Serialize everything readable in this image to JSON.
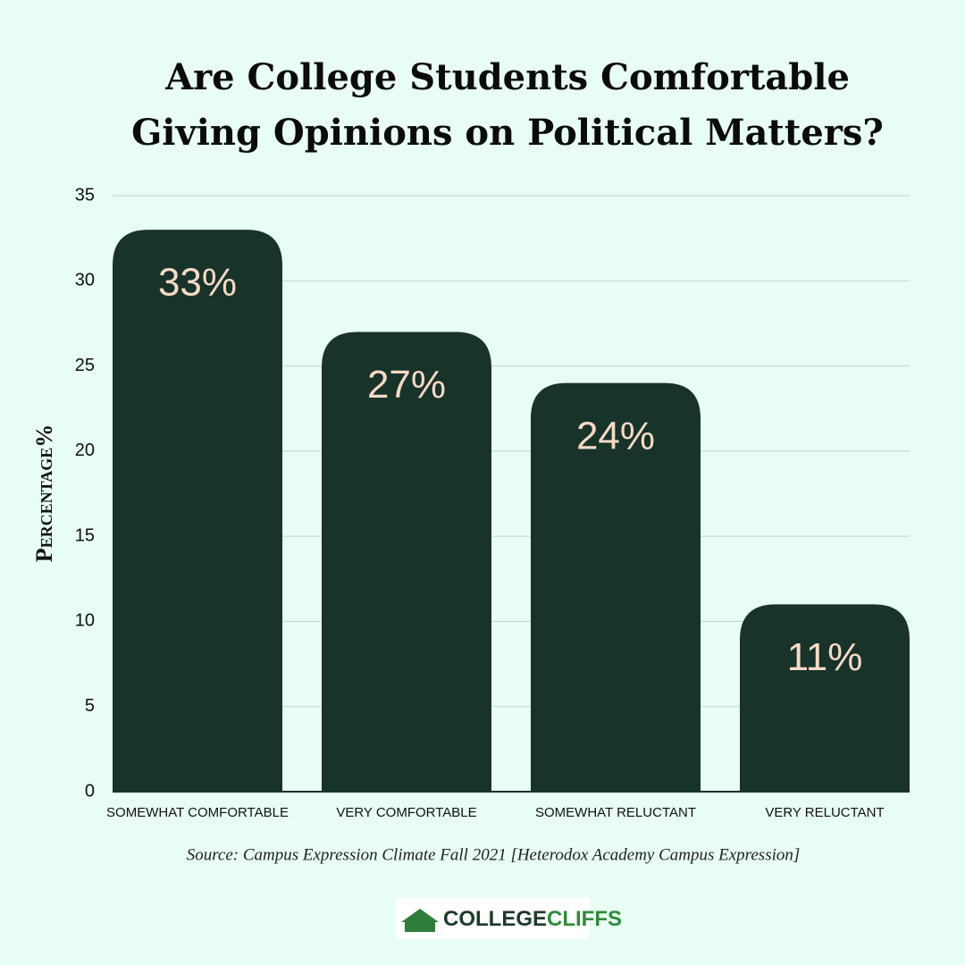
{
  "chart_data": {
    "type": "bar",
    "title": [
      "Are College Students Comfortable",
      "Giving Opinions on Political Matters?"
    ],
    "categories": [
      "SOMEWHAT COMFORTABLE",
      "VERY COMFORTABLE",
      "SOMEWHAT RELUCTANT",
      "VERY RELUCTANT"
    ],
    "values": [
      33,
      27,
      24,
      11
    ],
    "value_labels": [
      "33%",
      "27%",
      "24%",
      "11%"
    ],
    "color": "#17332a",
    "label_color": "#f6d9c5",
    "ylabel": "Percentage%",
    "ylim": [
      0,
      35
    ],
    "yticks": [
      0,
      5,
      10,
      15,
      20,
      25,
      30,
      35
    ],
    "grid": true,
    "source": "Source: Campus Expression Climate Fall 2021 [Heterodox Academy Campus Expression]",
    "logo": [
      "COLLEGE",
      "CLIFFS"
    ]
  }
}
